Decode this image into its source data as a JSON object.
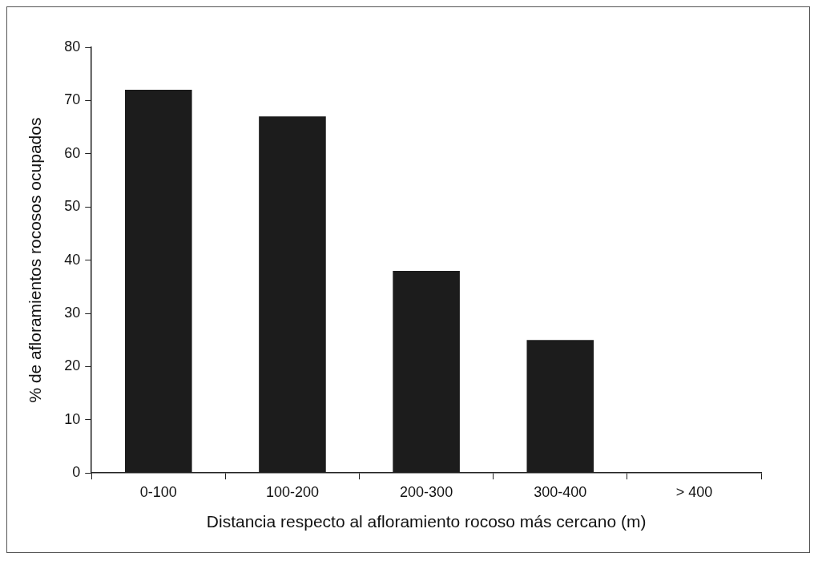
{
  "chart_data": {
    "type": "bar",
    "xlabel": "Distancia respecto al afloramiento rocoso más cercano (m)",
    "ylabel": "% de afloramientos rocosos ocupados",
    "categories": [
      "0-100",
      "100-200",
      "200-300",
      "300-400",
      "> 400"
    ],
    "values": [
      72,
      67,
      38,
      25,
      0
    ],
    "color": "#1c1c1c",
    "ylim": [
      0,
      80
    ],
    "yticks": [
      0,
      10,
      20,
      30,
      40,
      50,
      60,
      70,
      80
    ],
    "grid": false,
    "legend": false
  }
}
